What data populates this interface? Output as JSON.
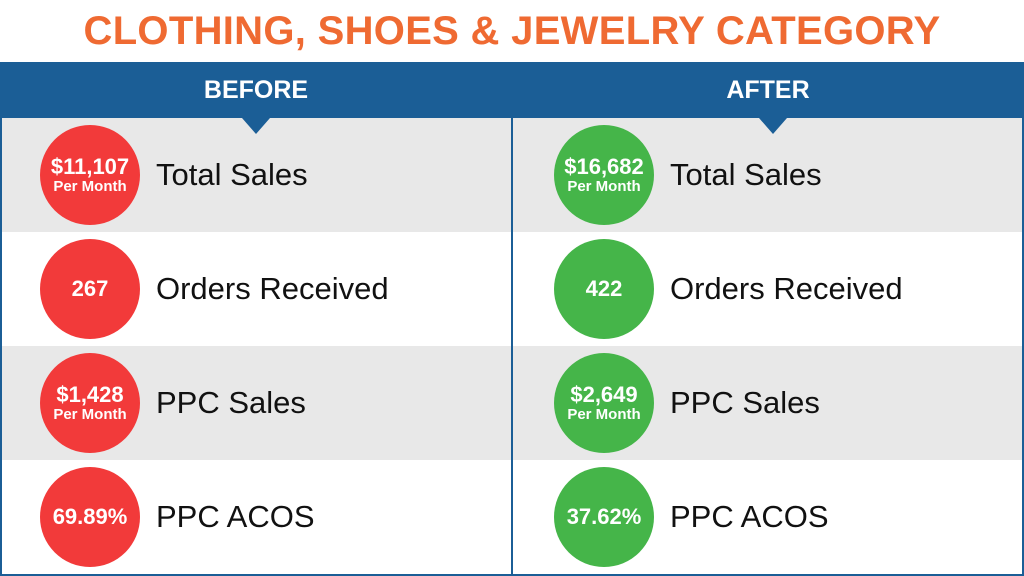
{
  "title": "CLOTHING, SHOES & JEWELRY CATEGORY",
  "colors": {
    "title": "#ef6a32",
    "header": "#1b5e96",
    "before_circle": "#f23a3a",
    "after_circle": "#45b549",
    "row_shade": "#e8e8e8"
  },
  "before": {
    "header": "BEFORE",
    "metrics": [
      {
        "value": "$11,107",
        "sub": "Per Month",
        "label": "Total Sales"
      },
      {
        "value": "267",
        "sub": "",
        "label": "Orders Received"
      },
      {
        "value": "$1,428",
        "sub": "Per Month",
        "label": "PPC Sales"
      },
      {
        "value": "69.89%",
        "sub": "",
        "label": "PPC ACOS"
      }
    ]
  },
  "after": {
    "header": "AFTER",
    "metrics": [
      {
        "value": "$16,682",
        "sub": "Per Month",
        "label": "Total Sales"
      },
      {
        "value": "422",
        "sub": "",
        "label": "Orders Received"
      },
      {
        "value": "$2,649",
        "sub": "Per Month",
        "label": "PPC Sales"
      },
      {
        "value": "37.62%",
        "sub": "",
        "label": "PPC ACOS"
      }
    ]
  }
}
